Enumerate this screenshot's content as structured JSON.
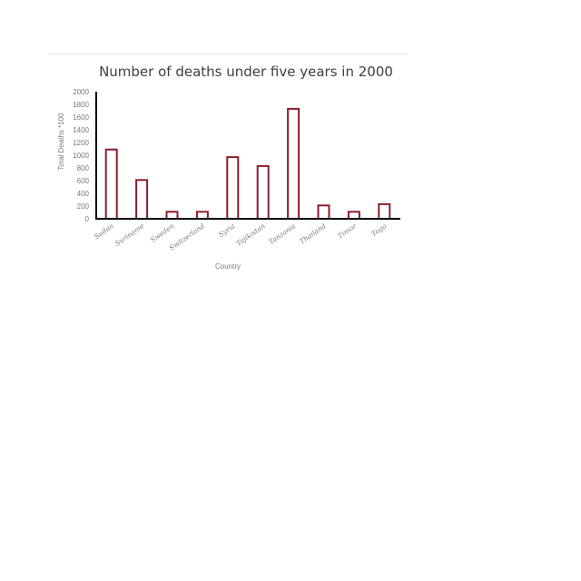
{
  "chart_data": {
    "type": "bar",
    "title": "Number of deaths under five years in 2000",
    "xlabel": "Country",
    "ylabel": "Total Deaths *100",
    "categories": [
      "Sudan",
      "Suriname",
      "Sweden",
      "Switzerland",
      "Syria",
      "Tajikistan",
      "Tanzania",
      "Thailand",
      "Timor",
      "Togo"
    ],
    "values": [
      1090,
      610,
      110,
      110,
      970,
      830,
      1730,
      210,
      110,
      230
    ],
    "ylim": [
      0,
      2000
    ],
    "yticks": [
      0,
      200,
      400,
      600,
      800,
      1000,
      1200,
      1400,
      1600,
      1800,
      2000
    ],
    "grid": false,
    "legend": "none",
    "colors": {
      "bar_stroke": "#8b1e2d",
      "bar_fill": "#ffffff",
      "axis": "#000000"
    }
  }
}
